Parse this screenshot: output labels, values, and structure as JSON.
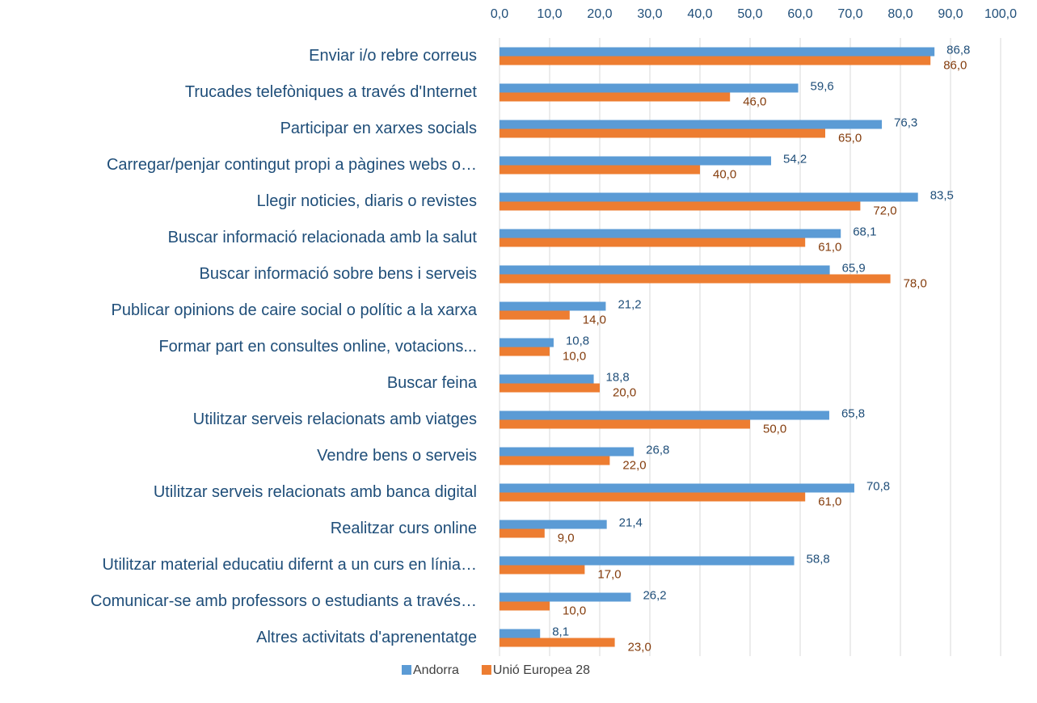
{
  "chart_data": {
    "type": "bar",
    "orientation": "horizontal",
    "categories": [
      "Enviar i/o rebre correus",
      "Trucades telefòniques a través d'Internet",
      "Participar en xarxes socials",
      "Carregar/penjar contingut propi a pàgines webs o…",
      "Llegir noticies, diaris o revistes",
      "Buscar informació relacionada amb la salut",
      "Buscar informació sobre bens i serveis",
      "Publicar opinions de caire social o polític a la xarxa",
      "Formar part en consultes online, votacions...",
      "Buscar feina",
      "Utilitzar serveis relacionats amb viatges",
      "Vendre bens o serveis",
      "Utilitzar serveis relacionats amb banca digital",
      "Realitzar curs online",
      "Utilitzar material educatiu difernt a un curs en línia…",
      "Comunicar-se amb professors o estudiants a través…",
      "Altres activitats d'aprenentatge"
    ],
    "series": [
      {
        "name": "Andorra",
        "color": "#5b9bd5",
        "values": [
          86.8,
          59.6,
          76.3,
          54.2,
          83.5,
          68.1,
          65.9,
          21.2,
          10.8,
          18.8,
          65.8,
          26.8,
          70.8,
          21.4,
          58.8,
          26.2,
          8.1
        ],
        "value_labels": [
          "86,8",
          "59,6",
          "76,3",
          "54,2",
          "83,5",
          "68,1",
          "65,9",
          "21,2",
          "10,8",
          "18,8",
          "65,8",
          "26,8",
          "70,8",
          "21,4",
          "58,8",
          "26,2",
          "8,1"
        ]
      },
      {
        "name": "Unió Europea 28",
        "color": "#ed7d31",
        "values": [
          86,
          46,
          65,
          40,
          72,
          61,
          78,
          14,
          10,
          20,
          50,
          22,
          61,
          9,
          17,
          10,
          23
        ],
        "value_labels": [
          "86,0",
          "46,0",
          "65,0",
          "40,0",
          "72,0",
          "61,0",
          "78,0",
          "14,0",
          "10,0",
          "20,0",
          "50,0",
          "22,0",
          "61,0",
          "9,0",
          "17,0",
          "10,0",
          "23,0"
        ]
      }
    ],
    "xlim": [
      0,
      100
    ],
    "xticks": [
      {
        "value": 0,
        "label": "0,0"
      },
      {
        "value": 10,
        "label": "10,0"
      },
      {
        "value": 20,
        "label": "20,0"
      },
      {
        "value": 30,
        "label": "30,0"
      },
      {
        "value": 40,
        "label": "40,0"
      },
      {
        "value": 50,
        "label": "50,0"
      },
      {
        "value": 60,
        "label": "60,0"
      },
      {
        "value": 70,
        "label": "70,0"
      },
      {
        "value": 80,
        "label": "80,0"
      },
      {
        "value": 90,
        "label": "90,0"
      },
      {
        "value": 100,
        "label": "100,0"
      }
    ],
    "grid": true,
    "legend": "bottom"
  }
}
